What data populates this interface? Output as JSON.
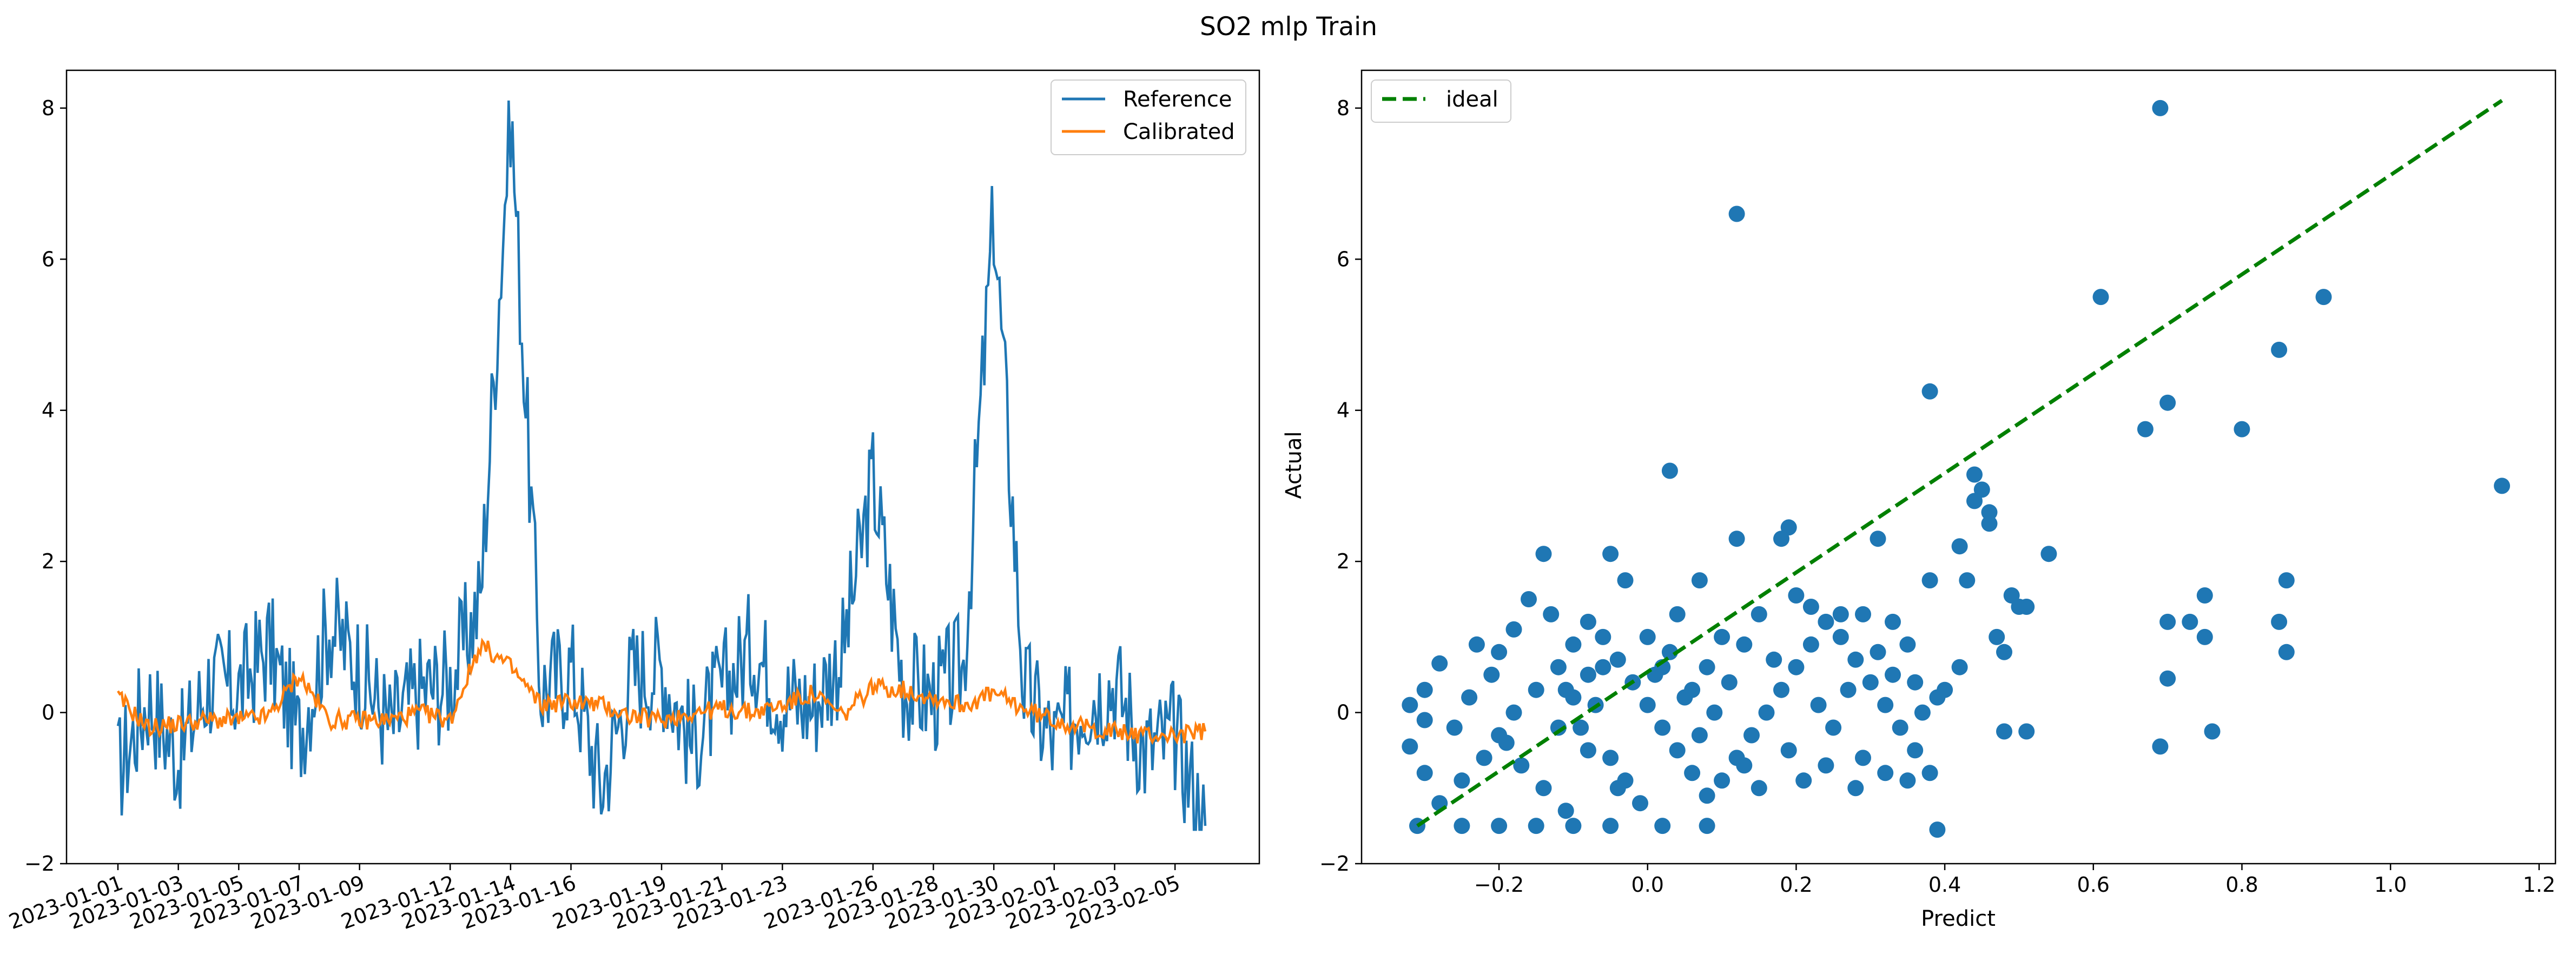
{
  "title": "SO2 mlp Train",
  "colors": {
    "reference": "#1f77b4",
    "calibrated": "#ff7f0e",
    "ideal": "#008000",
    "scatter": "#1f77b4"
  },
  "chart_data": [
    {
      "type": "line",
      "title": "",
      "xlabel": "",
      "ylabel": "",
      "ylim": [
        -2,
        8.5
      ],
      "yticks": [
        -2,
        0,
        2,
        4,
        6,
        8
      ],
      "xticks": [
        "2023-01-01",
        "2023-01-03",
        "2023-01-05",
        "2023-01-07",
        "2023-01-09",
        "2023-01-12",
        "2023-01-14",
        "2023-01-16",
        "2023-01-19",
        "2023-01-21",
        "2023-01-23",
        "2023-01-26",
        "2023-01-28",
        "2023-01-30",
        "2023-02-01",
        "2023-02-03",
        "2023-02-05"
      ],
      "legend": {
        "position": "top-right",
        "entries": [
          "Reference",
          "Calibrated"
        ]
      },
      "series": [
        {
          "name": "Reference",
          "color": "#1f77b4",
          "x": [
            "2023-01-01",
            "2023-01-02",
            "2023-01-03",
            "2023-01-04",
            "2023-01-05",
            "2023-01-06",
            "2023-01-07",
            "2023-01-08",
            "2023-01-09",
            "2023-01-10",
            "2023-01-11",
            "2023-01-12",
            "2023-01-13",
            "2023-01-14",
            "2023-01-15",
            "2023-01-16",
            "2023-01-17",
            "2023-01-18",
            "2023-01-19",
            "2023-01-20",
            "2023-01-21",
            "2023-01-22",
            "2023-01-23",
            "2023-01-24",
            "2023-01-25",
            "2023-01-26",
            "2023-01-27",
            "2023-01-28",
            "2023-01-29",
            "2023-01-30",
            "2023-01-31",
            "2023-02-01",
            "2023-02-02",
            "2023-02-03",
            "2023-02-04",
            "2023-02-05",
            "2023-02-06"
          ],
          "values": [
            -0.8,
            0.2,
            -0.6,
            0.4,
            0.3,
            0.9,
            -0.3,
            1.2,
            0.6,
            -0.2,
            0.3,
            0.4,
            1.5,
            8.0,
            0.3,
            0.6,
            -1.0,
            0.5,
            0.6,
            -0.4,
            0.3,
            0.9,
            0.2,
            0.1,
            0.8,
            3.1,
            0.4,
            0.2,
            0.6,
            6.6,
            0.3,
            -0.4,
            0.2,
            0.4,
            -0.5,
            -0.3,
            -1.5
          ]
        },
        {
          "name": "Calibrated",
          "color": "#ff7f0e",
          "x": [
            "2023-01-01",
            "2023-01-02",
            "2023-01-03",
            "2023-01-04",
            "2023-01-05",
            "2023-01-06",
            "2023-01-07",
            "2023-01-08",
            "2023-01-09",
            "2023-01-10",
            "2023-01-11",
            "2023-01-12",
            "2023-01-13",
            "2023-01-14",
            "2023-01-15",
            "2023-01-16",
            "2023-01-17",
            "2023-01-18",
            "2023-01-19",
            "2023-01-20",
            "2023-01-21",
            "2023-01-22",
            "2023-01-23",
            "2023-01-24",
            "2023-01-25",
            "2023-01-26",
            "2023-01-27",
            "2023-01-28",
            "2023-01-29",
            "2023-01-30",
            "2023-01-31",
            "2023-02-01",
            "2023-02-02",
            "2023-02-03",
            "2023-02-04",
            "2023-02-05",
            "2023-02-06"
          ],
          "values": [
            0.2,
            -0.2,
            -0.15,
            -0.1,
            -0.1,
            -0.05,
            0.5,
            -0.1,
            -0.1,
            -0.1,
            0.0,
            -0.1,
            0.9,
            0.6,
            0.1,
            0.15,
            0.1,
            -0.05,
            -0.1,
            0.0,
            0.05,
            0.0,
            0.1,
            0.25,
            -0.05,
            0.35,
            0.3,
            0.2,
            0.1,
            0.25,
            0.05,
            -0.1,
            -0.2,
            -0.25,
            -0.3,
            -0.3,
            -0.25
          ]
        }
      ]
    },
    {
      "type": "scatter",
      "title": "",
      "xlabel": "Predict",
      "ylabel": "Actual",
      "xlim": [
        -0.385,
        1.222
      ],
      "ylim": [
        -2,
        8.5
      ],
      "xticks": [
        "−0.2",
        "0.0",
        "0.2",
        "0.4",
        "0.6",
        "0.8",
        "1.0",
        "1.2"
      ],
      "xtick_values": [
        -0.2,
        0.0,
        0.2,
        0.4,
        0.6,
        0.8,
        1.0,
        1.2
      ],
      "yticks": [
        -2,
        0,
        2,
        4,
        6,
        8
      ],
      "legend": {
        "position": "top-left",
        "entries": [
          "ideal"
        ]
      },
      "ideal_line": {
        "x": [
          -0.31,
          1.15
        ],
        "y": [
          -1.5,
          8.1
        ]
      },
      "points": [
        [
          0.12,
          6.6
        ],
        [
          0.69,
          8.0
        ],
        [
          0.61,
          5.5
        ],
        [
          0.91,
          5.5
        ],
        [
          0.85,
          4.8
        ],
        [
          0.38,
          4.25
        ],
        [
          0.7,
          4.1
        ],
        [
          0.67,
          3.75
        ],
        [
          0.8,
          3.75
        ],
        [
          0.03,
          3.2
        ],
        [
          1.15,
          3.0
        ],
        [
          0.44,
          3.15
        ],
        [
          0.45,
          2.95
        ],
        [
          0.44,
          2.8
        ],
        [
          0.46,
          2.65
        ],
        [
          0.46,
          2.5
        ],
        [
          0.19,
          2.45
        ],
        [
          0.18,
          2.3
        ],
        [
          0.31,
          2.3
        ],
        [
          0.12,
          2.3
        ],
        [
          0.54,
          2.1
        ],
        [
          0.42,
          2.2
        ],
        [
          -0.05,
          2.1
        ],
        [
          -0.14,
          2.1
        ],
        [
          0.07,
          1.75
        ],
        [
          0.86,
          1.75
        ],
        [
          0.75,
          1.55
        ],
        [
          0.38,
          1.75
        ],
        [
          0.43,
          1.75
        ],
        [
          0.2,
          1.55
        ],
        [
          -0.03,
          1.75
        ],
        [
          0.49,
          1.55
        ],
        [
          0.51,
          1.4
        ],
        [
          0.5,
          1.4
        ],
        [
          0.7,
          1.2
        ],
        [
          0.73,
          1.2
        ],
        [
          0.85,
          1.2
        ],
        [
          0.75,
          1.0
        ],
        [
          0.47,
          1.0
        ],
        [
          0.7,
          0.45
        ],
        [
          0.86,
          0.8
        ],
        [
          0.48,
          0.8
        ],
        [
          0.76,
          -0.25
        ],
        [
          0.69,
          -0.45
        ],
        [
          0.51,
          -0.25
        ],
        [
          0.48,
          -0.25
        ],
        [
          0.39,
          -1.55
        ],
        [
          0.02,
          -1.5
        ],
        [
          0.08,
          -1.5
        ],
        [
          -0.31,
          -1.5
        ],
        [
          -0.25,
          -1.5
        ],
        [
          -0.2,
          -1.5
        ],
        [
          -0.15,
          -1.5
        ],
        [
          -0.1,
          -1.5
        ],
        [
          -0.05,
          -1.5
        ],
        [
          -0.28,
          0.65
        ],
        [
          -0.3,
          0.3
        ],
        [
          -0.32,
          0.1
        ],
        [
          -0.3,
          -0.1
        ],
        [
          -0.32,
          -0.45
        ],
        [
          -0.3,
          -0.8
        ],
        [
          -0.28,
          -1.2
        ],
        [
          -0.25,
          -0.9
        ],
        [
          -0.22,
          -0.6
        ],
        [
          -0.2,
          -0.3
        ],
        [
          -0.18,
          0.0
        ],
        [
          -0.15,
          0.3
        ],
        [
          -0.12,
          0.6
        ],
        [
          -0.1,
          0.9
        ],
        [
          -0.08,
          1.2
        ],
        [
          -0.06,
          1.0
        ],
        [
          -0.04,
          0.7
        ],
        [
          -0.02,
          0.4
        ],
        [
          0.0,
          0.1
        ],
        [
          0.02,
          -0.2
        ],
        [
          0.04,
          -0.5
        ],
        [
          0.06,
          -0.8
        ],
        [
          0.08,
          -1.1
        ],
        [
          0.1,
          -0.9
        ],
        [
          0.12,
          -0.6
        ],
        [
          0.14,
          -0.3
        ],
        [
          0.16,
          0.0
        ],
        [
          0.18,
          0.3
        ],
        [
          0.2,
          0.6
        ],
        [
          0.22,
          0.9
        ],
        [
          0.24,
          1.2
        ],
        [
          0.26,
          1.0
        ],
        [
          0.28,
          0.7
        ],
        [
          0.3,
          0.4
        ],
        [
          0.32,
          0.1
        ],
        [
          0.34,
          -0.2
        ],
        [
          0.36,
          -0.5
        ],
        [
          0.38,
          -0.8
        ],
        [
          0.4,
          0.3
        ],
        [
          -0.24,
          0.2
        ],
        [
          -0.21,
          0.5
        ],
        [
          -0.19,
          -0.4
        ],
        [
          -0.17,
          -0.7
        ],
        [
          -0.14,
          -1.0
        ],
        [
          -0.11,
          -1.3
        ],
        [
          -0.09,
          -0.2
        ],
        [
          -0.07,
          0.1
        ],
        [
          -0.05,
          -0.6
        ],
        [
          -0.03,
          -0.9
        ],
        [
          -0.01,
          -1.2
        ],
        [
          0.01,
          0.5
        ],
        [
          0.03,
          0.8
        ],
        [
          0.05,
          0.2
        ],
        [
          0.07,
          -0.3
        ],
        [
          0.09,
          0.0
        ],
        [
          0.11,
          0.4
        ],
        [
          0.13,
          -0.7
        ],
        [
          0.15,
          -1.0
        ],
        [
          0.17,
          0.7
        ],
        [
          0.19,
          -0.5
        ],
        [
          0.21,
          -0.9
        ],
        [
          0.23,
          0.1
        ],
        [
          0.25,
          -0.2
        ],
        [
          0.27,
          0.3
        ],
        [
          0.29,
          -0.6
        ],
        [
          0.31,
          0.8
        ],
        [
          0.33,
          0.5
        ],
        [
          0.35,
          -0.9
        ],
        [
          0.37,
          0.0
        ],
        [
          -0.26,
          -0.2
        ],
        [
          -0.23,
          0.9
        ],
        [
          -0.16,
          1.5
        ],
        [
          -0.13,
          1.3
        ],
        [
          -0.11,
          0.3
        ],
        [
          -0.08,
          -0.5
        ],
        [
          -0.06,
          0.6
        ],
        [
          -0.04,
          -1.0
        ],
        [
          0.0,
          1.0
        ],
        [
          0.02,
          0.6
        ],
        [
          0.04,
          1.3
        ],
        [
          0.1,
          1.0
        ],
        [
          0.13,
          0.9
        ],
        [
          0.15,
          1.3
        ],
        [
          0.22,
          1.4
        ],
        [
          0.26,
          1.3
        ],
        [
          0.29,
          1.3
        ],
        [
          0.33,
          1.2
        ],
        [
          0.35,
          0.9
        ],
        [
          0.39,
          0.2
        ],
        [
          0.42,
          0.6
        ],
        [
          -0.18,
          1.1
        ],
        [
          -0.2,
          0.8
        ],
        [
          -0.12,
          -0.2
        ],
        [
          -0.1,
          0.2
        ],
        [
          -0.08,
          0.5
        ],
        [
          0.06,
          0.3
        ],
        [
          0.08,
          0.6
        ],
        [
          0.24,
          -0.7
        ],
        [
          0.28,
          -1.0
        ],
        [
          0.32,
          -0.8
        ],
        [
          0.36,
          0.4
        ]
      ]
    }
  ]
}
